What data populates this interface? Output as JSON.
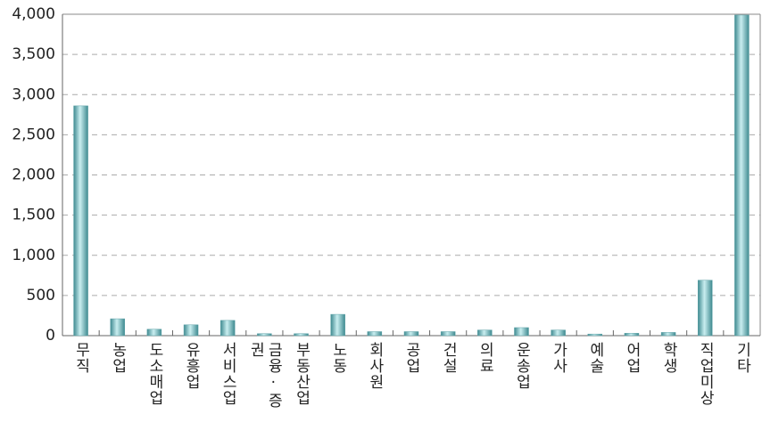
{
  "chart_data": {
    "type": "bar",
    "categories": [
      "무직",
      "농업",
      "도소매업",
      "유흥업",
      "서비스업",
      "금융·증권",
      "부동산업",
      "노동",
      "회사원",
      "공업",
      "건설",
      "의료",
      "운송업",
      "가사",
      "예술",
      "어업",
      "학생",
      "직업미상",
      "기타"
    ],
    "values": [
      2860,
      210,
      80,
      135,
      190,
      25,
      25,
      265,
      50,
      50,
      50,
      70,
      100,
      70,
      20,
      30,
      40,
      690,
      3990
    ],
    "color": "#5fa3a8",
    "ylim": [
      0,
      4000
    ],
    "yticks": [
      0,
      500,
      {
        "value": 1000,
        "label": "1,000"
      },
      {
        "value": 1500,
        "label": "1,500"
      },
      {
        "value": 2000,
        "label": "2,000"
      },
      {
        "value": 2500,
        "label": "2,500"
      },
      {
        "value": 3000,
        "label": "3,000"
      },
      {
        "value": 3500,
        "label": "3,500"
      },
      {
        "value": 4000,
        "label": "4,000"
      }
    ],
    "grid": true
  }
}
